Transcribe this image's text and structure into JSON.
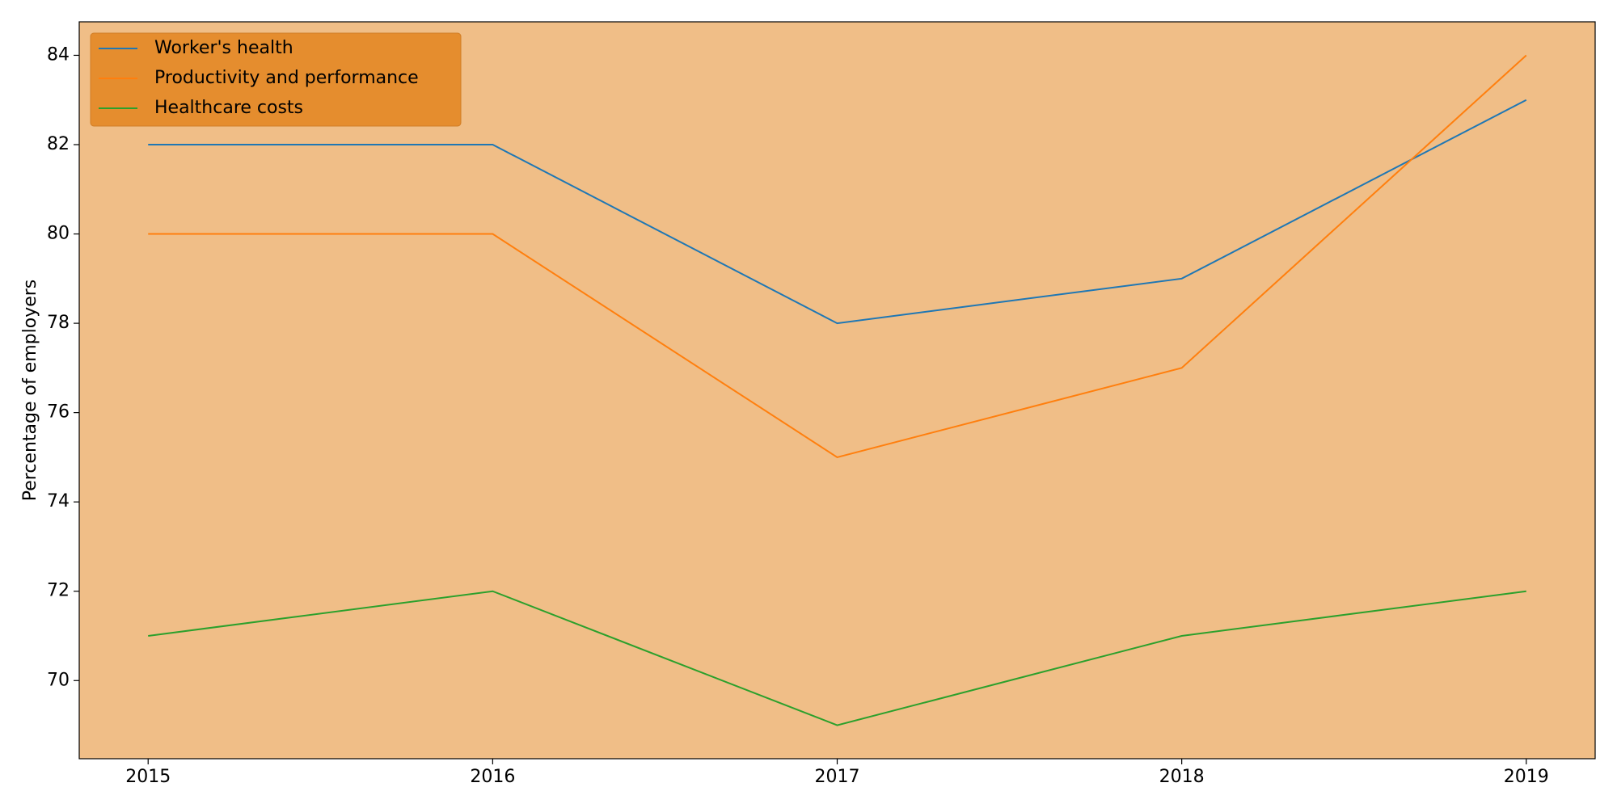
{
  "chart_data": {
    "type": "line",
    "ylabel": "Percentage of employers",
    "x": [
      2015,
      2016,
      2017,
      2018,
      2019
    ],
    "series": [
      {
        "name": "Worker's health",
        "color": "#1f77b4",
        "values": [
          82,
          82,
          78,
          79,
          83
        ]
      },
      {
        "name": "Productivity and performance",
        "color": "#ff7f0e",
        "values": [
          80,
          80,
          75,
          77,
          84
        ]
      },
      {
        "name": "Healthcare costs",
        "color": "#2ca02c",
        "values": [
          71,
          72,
          69,
          71,
          72
        ]
      }
    ],
    "xlim": [
      2014.8,
      2019.2
    ],
    "xticks": [
      2015,
      2016,
      2017,
      2018,
      2019
    ],
    "ylim": [
      68.25,
      84.75
    ],
    "yticks": [
      70,
      72,
      74,
      76,
      78,
      80,
      82,
      84
    ],
    "grid": false,
    "legend": "upper left",
    "facecolor": "#f0be87",
    "legend_facecolor": "#e58b2a"
  }
}
